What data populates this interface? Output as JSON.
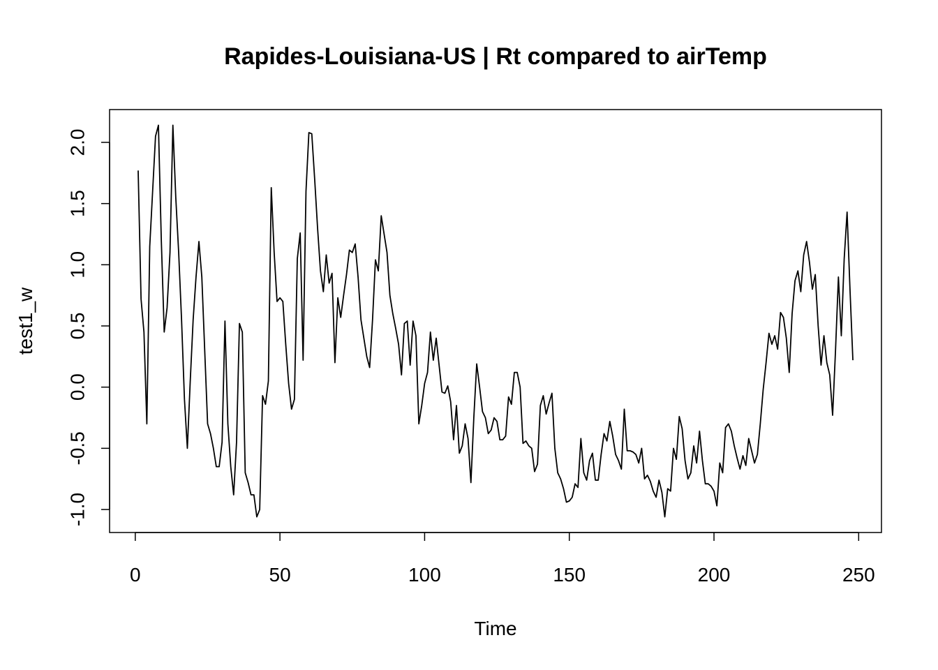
{
  "chart_data": {
    "type": "line",
    "title": "Rapides-Louisiana-US | Rt compared to airTemp",
    "xlabel": "Time",
    "ylabel": "test1_w",
    "color": "#000000",
    "x": [
      1,
      2,
      3,
      4,
      5,
      6,
      7,
      8,
      9,
      10,
      11,
      12,
      13,
      14,
      15,
      16,
      17,
      18,
      19,
      20,
      21,
      22,
      23,
      24,
      25,
      26,
      27,
      28,
      29,
      30,
      31,
      32,
      33,
      34,
      35,
      36,
      37,
      38,
      39,
      40,
      41,
      42,
      43,
      44,
      45,
      46,
      47,
      48,
      49,
      50,
      51,
      52,
      53,
      54,
      55,
      56,
      57,
      58,
      59,
      60,
      61,
      62,
      63,
      64,
      65,
      66,
      67,
      68,
      69,
      70,
      71,
      72,
      73,
      74,
      75,
      76,
      77,
      78,
      79,
      80,
      81,
      82,
      83,
      84,
      85,
      86,
      87,
      88,
      89,
      90,
      91,
      92,
      93,
      94,
      95,
      96,
      97,
      98,
      99,
      100,
      101,
      102,
      103,
      104,
      105,
      106,
      107,
      108,
      109,
      110,
      111,
      112,
      113,
      114,
      115,
      116,
      117,
      118,
      119,
      120,
      121,
      122,
      123,
      124,
      125,
      126,
      127,
      128,
      129,
      130,
      131,
      132,
      133,
      134,
      135,
      136,
      137,
      138,
      139,
      140,
      141,
      142,
      143,
      144,
      145,
      146,
      147,
      148,
      149,
      150,
      151,
      152,
      153,
      154,
      155,
      156,
      157,
      158,
      159,
      160,
      161,
      162,
      163,
      164,
      165,
      166,
      167,
      168,
      169,
      170,
      171,
      172,
      173,
      174,
      175,
      176,
      177,
      178,
      179,
      180,
      181,
      182,
      183,
      184,
      185,
      186,
      187,
      188,
      189,
      190,
      191,
      192,
      193,
      194,
      195,
      196,
      197,
      198,
      199,
      200,
      201,
      202,
      203,
      204,
      205,
      206,
      207,
      208,
      209,
      210,
      211,
      212,
      213,
      214,
      215,
      216,
      217,
      218,
      219,
      220,
      221,
      222,
      223,
      224,
      225,
      226,
      227,
      228,
      229,
      230,
      231,
      232,
      233,
      234,
      235,
      236,
      237,
      238,
      239,
      240,
      241,
      242,
      243,
      244,
      245,
      246,
      247,
      248
    ],
    "values": [
      1.77,
      0.72,
      0.45,
      -0.3,
      1.15,
      1.6,
      2.05,
      2.14,
      1.2,
      0.45,
      0.65,
      1.1,
      2.14,
      1.55,
      1.1,
      0.55,
      -0.1,
      -0.5,
      0.05,
      0.55,
      0.9,
      1.19,
      0.9,
      0.3,
      -0.3,
      -0.38,
      -0.5,
      -0.65,
      -0.65,
      -0.45,
      0.54,
      -0.3,
      -0.65,
      -0.88,
      -0.45,
      0.52,
      0.45,
      -0.7,
      -0.78,
      -0.88,
      -0.88,
      -1.06,
      -1.0,
      -0.07,
      -0.14,
      0.05,
      1.63,
      1.1,
      0.7,
      0.73,
      0.7,
      0.35,
      0.03,
      -0.18,
      -0.1,
      1.05,
      1.26,
      0.22,
      1.6,
      2.08,
      2.07,
      1.7,
      1.3,
      0.95,
      0.78,
      1.08,
      0.85,
      0.93,
      0.2,
      0.73,
      0.57,
      0.75,
      0.92,
      1.12,
      1.1,
      1.17,
      0.9,
      0.55,
      0.4,
      0.25,
      0.16,
      0.55,
      1.04,
      0.95,
      1.4,
      1.25,
      1.1,
      0.75,
      0.6,
      0.48,
      0.35,
      0.1,
      0.52,
      0.54,
      0.18,
      0.54,
      0.42,
      -0.3,
      -0.15,
      0.03,
      0.12,
      0.45,
      0.22,
      0.4,
      0.18,
      -0.04,
      -0.05,
      0.01,
      -0.12,
      -0.43,
      -0.15,
      -0.54,
      -0.48,
      -0.3,
      -0.42,
      -0.78,
      -0.25,
      0.19,
      0.0,
      -0.2,
      -0.25,
      -0.38,
      -0.35,
      -0.25,
      -0.28,
      -0.43,
      -0.43,
      -0.4,
      -0.08,
      -0.14,
      0.12,
      0.12,
      0.0,
      -0.46,
      -0.44,
      -0.48,
      -0.5,
      -0.69,
      -0.63,
      -0.15,
      -0.07,
      -0.22,
      -0.13,
      -0.05,
      -0.5,
      -0.7,
      -0.75,
      -0.83,
      -0.94,
      -0.93,
      -0.9,
      -0.79,
      -0.82,
      -0.42,
      -0.7,
      -0.76,
      -0.6,
      -0.54,
      -0.76,
      -0.76,
      -0.55,
      -0.38,
      -0.44,
      -0.28,
      -0.4,
      -0.55,
      -0.6,
      -0.67,
      -0.18,
      -0.52,
      -0.52,
      -0.53,
      -0.55,
      -0.62,
      -0.5,
      -0.75,
      -0.72,
      -0.77,
      -0.85,
      -0.9,
      -0.76,
      -0.86,
      -1.06,
      -0.83,
      -0.85,
      -0.5,
      -0.59,
      -0.24,
      -0.34,
      -0.6,
      -0.75,
      -0.7,
      -0.48,
      -0.62,
      -0.36,
      -0.6,
      -0.79,
      -0.79,
      -0.81,
      -0.85,
      -0.97,
      -0.62,
      -0.7,
      -0.33,
      -0.3,
      -0.36,
      -0.48,
      -0.58,
      -0.67,
      -0.56,
      -0.64,
      -0.42,
      -0.52,
      -0.62,
      -0.55,
      -0.3,
      -0.02,
      0.2,
      0.44,
      0.35,
      0.42,
      0.31,
      0.61,
      0.57,
      0.4,
      0.12,
      0.6,
      0.87,
      0.95,
      0.78,
      1.08,
      1.19,
      1.02,
      0.8,
      0.92,
      0.5,
      0.18,
      0.42,
      0.2,
      0.1,
      -0.23,
      0.3,
      0.9,
      0.42,
      1.05,
      1.43,
      0.8,
      0.22
    ],
    "xlim": [
      -8.88,
      257.88
    ],
    "ylim": [
      -1.188,
      2.268
    ],
    "xticks": [
      0,
      50,
      100,
      150,
      200,
      250
    ],
    "yticks": [
      {
        "value": -1,
        "label": "-1.0"
      },
      {
        "value": -0.5,
        "label": "-0.5"
      },
      {
        "value": 0,
        "label": "0.0"
      },
      {
        "value": 0.5,
        "label": "0.5"
      },
      {
        "value": 1,
        "label": "1.0"
      },
      {
        "value": 1.5,
        "label": "1.5"
      },
      {
        "value": 2,
        "label": "2.0"
      }
    ]
  }
}
